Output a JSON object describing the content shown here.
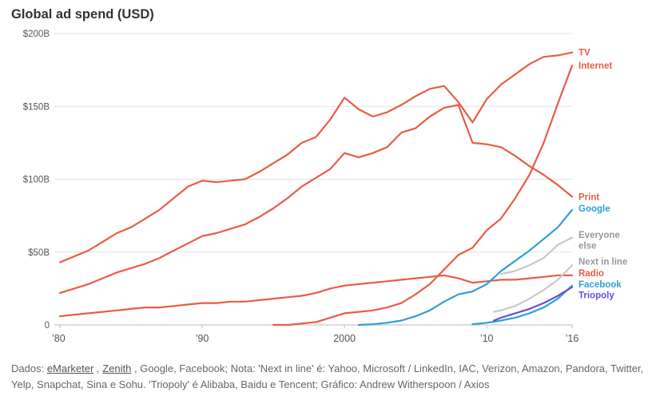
{
  "chart_data": {
    "type": "line",
    "title": "Global ad spend (USD)",
    "xlabel": "",
    "ylabel": "",
    "xlim": [
      1980,
      2016
    ],
    "ylim": [
      0,
      200
    ],
    "y_ticks": [
      0,
      50,
      100,
      150,
      200
    ],
    "y_tick_labels": [
      "0",
      "$50B",
      "$100B",
      "$150B",
      "$200B"
    ],
    "x_ticks": [
      1980,
      1990,
      2000,
      2010,
      2016
    ],
    "x_tick_labels": [
      "’80",
      "’90",
      "2000",
      "’10",
      "’16"
    ],
    "grid": true,
    "legend": "inline labels at right end of lines",
    "series": [
      {
        "name": "TV",
        "color": "#e85d45",
        "x": [
          1980,
          1981,
          1982,
          1983,
          1984,
          1985,
          1986,
          1987,
          1988,
          1989,
          1990,
          1991,
          1992,
          1993,
          1994,
          1995,
          1996,
          1997,
          1998,
          1999,
          2000,
          2001,
          2002,
          2003,
          2004,
          2005,
          2006,
          2007,
          2008,
          2009,
          2010,
          2011,
          2012,
          2013,
          2014,
          2015,
          2016
        ],
        "values": [
          43,
          47,
          51,
          57,
          63,
          67,
          73,
          79,
          87,
          95,
          99,
          98,
          99,
          100,
          105,
          111,
          117,
          125,
          129,
          141,
          156,
          148,
          143,
          146,
          151,
          157,
          162,
          164,
          153,
          139,
          155,
          165,
          172,
          179,
          184,
          185,
          187
        ]
      },
      {
        "name": "Internet",
        "color": "#e85d45",
        "x": [
          1995,
          1996,
          1997,
          1998,
          1999,
          2000,
          2001,
          2002,
          2003,
          2004,
          2005,
          2006,
          2007,
          2008,
          2009,
          2010,
          2011,
          2012,
          2013,
          2014,
          2015,
          2016
        ],
        "values": [
          0,
          0,
          1,
          2,
          5,
          8,
          9,
          10,
          12,
          15,
          21,
          28,
          38,
          48,
          53,
          65,
          73,
          87,
          103,
          125,
          152,
          178
        ]
      },
      {
        "name": "Print",
        "color": "#e85d45",
        "x": [
          1980,
          1981,
          1982,
          1983,
          1984,
          1985,
          1986,
          1987,
          1988,
          1989,
          1990,
          1991,
          1992,
          1993,
          1994,
          1995,
          1996,
          1997,
          1998,
          1999,
          2000,
          2001,
          2002,
          2003,
          2004,
          2005,
          2006,
          2007,
          2008,
          2009,
          2010,
          2011,
          2012,
          2013,
          2014,
          2015,
          2016
        ],
        "values": [
          22,
          25,
          28,
          32,
          36,
          39,
          42,
          46,
          51,
          56,
          61,
          63,
          66,
          69,
          74,
          80,
          87,
          95,
          101,
          107,
          118,
          115,
          118,
          122,
          132,
          135,
          143,
          149,
          151,
          125,
          124,
          122,
          116,
          109,
          103,
          96,
          88
        ]
      },
      {
        "name": "Radio",
        "color": "#e85d45",
        "x": [
          1980,
          1981,
          1982,
          1983,
          1984,
          1985,
          1986,
          1987,
          1988,
          1989,
          1990,
          1991,
          1992,
          1993,
          1994,
          1995,
          1996,
          1997,
          1998,
          1999,
          2000,
          2001,
          2002,
          2003,
          2004,
          2005,
          2006,
          2007,
          2008,
          2009,
          2010,
          2011,
          2012,
          2013,
          2014,
          2015,
          2016
        ],
        "values": [
          6,
          7,
          8,
          9,
          10,
          11,
          12,
          12,
          13,
          14,
          15,
          15,
          16,
          16,
          17,
          18,
          19,
          20,
          22,
          25,
          27,
          28,
          29,
          30,
          31,
          32,
          33,
          34,
          32,
          29,
          30,
          31,
          31,
          32,
          33,
          34,
          34
        ]
      },
      {
        "name": "Google",
        "color": "#2e9fd6",
        "x": [
          2001,
          2002,
          2003,
          2004,
          2005,
          2006,
          2007,
          2008,
          2009,
          2010,
          2011,
          2012,
          2013,
          2014,
          2015,
          2016
        ],
        "values": [
          0,
          0.5,
          1.5,
          3,
          6,
          10,
          16,
          21,
          23,
          28,
          37,
          44,
          51,
          59,
          67,
          79
        ]
      },
      {
        "name": "Everyone else",
        "color": "#c8c8cc",
        "x": [
          2011,
          2012,
          2013,
          2014,
          2015,
          2016
        ],
        "values": [
          35,
          37,
          41,
          46,
          55,
          60
        ]
      },
      {
        "name": "Next in line",
        "color": "#c8c8cc",
        "x": [
          2010.5,
          2011,
          2012,
          2013,
          2014,
          2015,
          2016
        ],
        "values": [
          9,
          10,
          13,
          18,
          24,
          31,
          41
        ]
      },
      {
        "name": "Facebook",
        "color": "#2e9fd6",
        "x": [
          2009,
          2010,
          2011,
          2012,
          2013,
          2014,
          2015,
          2016
        ],
        "values": [
          0.5,
          1.5,
          3,
          5,
          8,
          12,
          18,
          27
        ]
      },
      {
        "name": "Triopoly",
        "color": "#6a4fd6",
        "x": [
          2010.5,
          2011,
          2012,
          2013,
          2014,
          2015,
          2016
        ],
        "values": [
          3,
          5,
          8,
          11,
          15,
          20,
          26
        ]
      }
    ],
    "end_labels": [
      {
        "text": "TV",
        "color": "#e85d45",
        "y": 187
      },
      {
        "text": "Internet",
        "color": "#e85d45",
        "y": 178
      },
      {
        "text": "Print",
        "color": "#e85d45",
        "y": 88
      },
      {
        "text": "Google",
        "color": "#2e9fd6",
        "y": 80
      },
      {
        "text": "Everyone",
        "color": "#999999",
        "y": 62
      },
      {
        "text": "else",
        "color": "#999999",
        "y": 54.5
      },
      {
        "text": "Next in line",
        "color": "#999999",
        "y": 43.5
      },
      {
        "text": "Radio",
        "color": "#e85d45",
        "y": 35.5
      },
      {
        "text": "Facebook",
        "color": "#2e9fd6",
        "y": 28
      },
      {
        "text": "Triopoly",
        "color": "#6a4fd6",
        "y": 20.5
      }
    ]
  },
  "footer": {
    "prefix": "Dados: ",
    "source1": "eMarketer",
    "sep1": " , ",
    "source2": "Zenith",
    "rest": " , Google, Facebook; Nota: 'Next in line' é: Yahoo, Microsoft / LinkedIn, IAC, Verizon, Amazon, Pandora, Twitter, Yelp, Snapchat, Sina e Sohu. 'Triopoly' é Alibaba, Baidu e Tencent; Gráfico: Andrew Witherspoon / Axios"
  }
}
